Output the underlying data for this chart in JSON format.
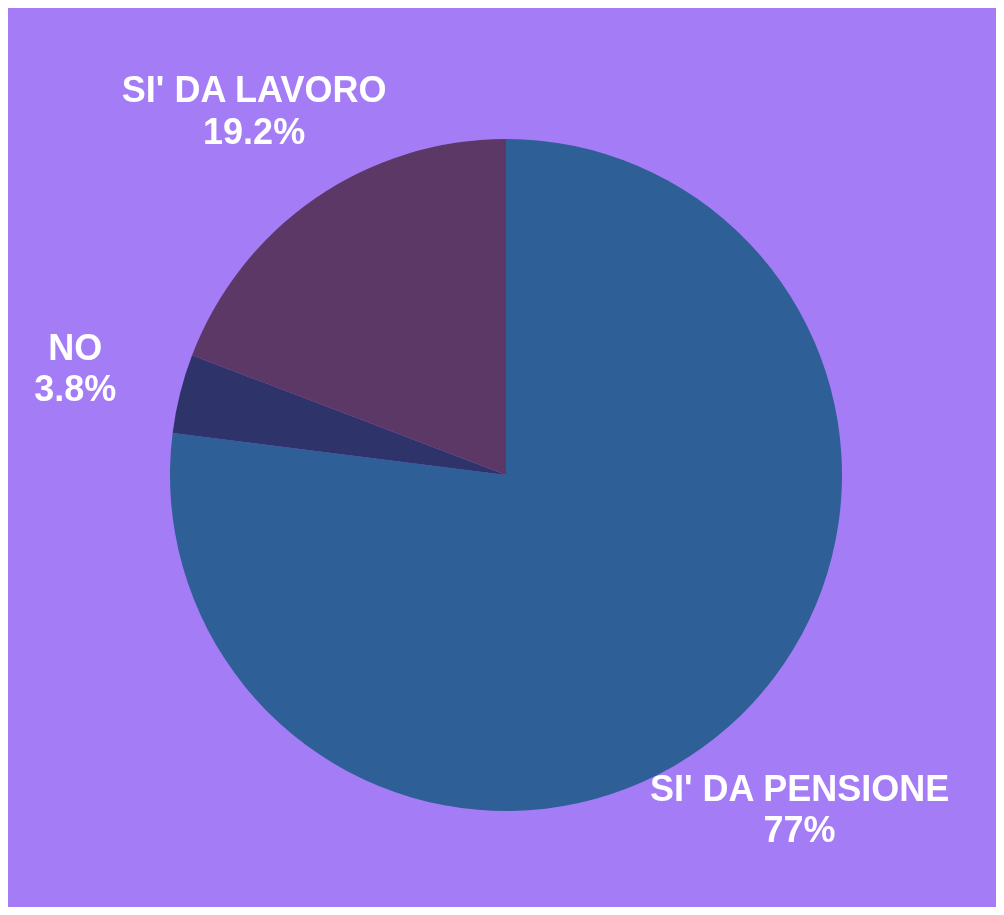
{
  "chart_data": {
    "type": "pie",
    "categories": [
      "SI' DA PENSIONE",
      "NO",
      "SI' DA LAVORO"
    ],
    "values": [
      77,
      3.8,
      19.2
    ],
    "value_labels": [
      "77%",
      "3.8%",
      "19.2%"
    ],
    "colors": [
      "#2e5f96",
      "#2e3369",
      "#5c3866"
    ]
  }
}
